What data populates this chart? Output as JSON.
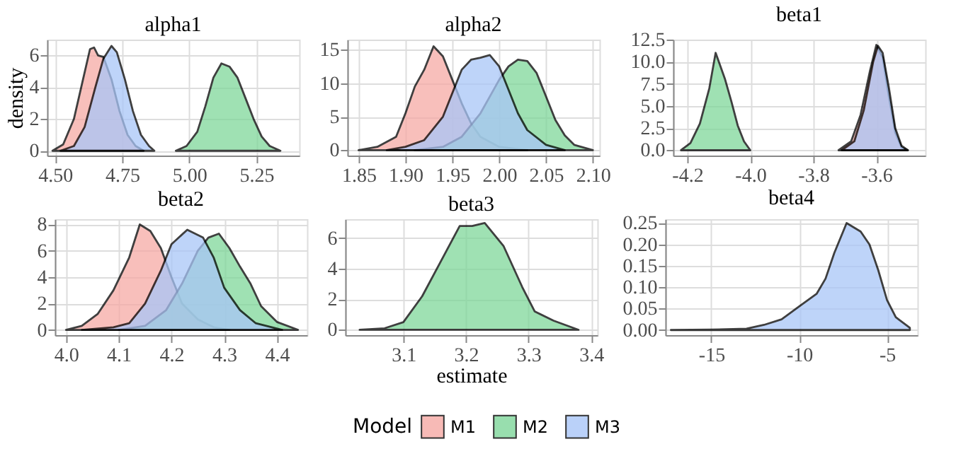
{
  "chart_data": [
    {
      "type": "area",
      "title": "alpha1",
      "ylabel": "density",
      "legend_title": "Model",
      "legend": "bottom",
      "grid": true,
      "xlim": [
        4.47,
        5.41
      ],
      "ylim": [
        -0.3,
        7
      ],
      "xticks": [
        {
          "value": 4.5,
          "label": "4.50"
        },
        {
          "value": 4.75,
          "label": "4.75"
        },
        {
          "value": 5.0,
          "label": "5.00"
        },
        {
          "value": 5.25,
          "label": "5.25"
        }
      ],
      "yticks": [
        0,
        2,
        4,
        6
      ],
      "series": [
        {
          "name": "M1",
          "color": "#f6aaa5",
          "x": [
            4.49,
            4.53,
            4.57,
            4.6,
            4.63,
            4.645,
            4.66,
            4.68,
            4.71,
            4.74,
            4.77,
            4.8,
            4.83
          ],
          "values": [
            0,
            0.4,
            2,
            4.2,
            6.4,
            6.5,
            6.0,
            5.9,
            4.5,
            2.5,
            1.0,
            0.3,
            0
          ]
        },
        {
          "name": "M2",
          "color": "#7fd79a",
          "x": [
            4.95,
            4.99,
            5.03,
            5.06,
            5.09,
            5.12,
            5.15,
            5.18,
            5.21,
            5.24,
            5.27,
            5.3,
            5.34
          ],
          "values": [
            0,
            0.3,
            1.2,
            2.8,
            4.6,
            5.5,
            5.3,
            4.6,
            3.3,
            2.0,
            0.9,
            0.3,
            0
          ]
        },
        {
          "name": "M3",
          "color": "#a9c6f8",
          "x": [
            4.52,
            4.57,
            4.61,
            4.65,
            4.68,
            4.71,
            4.73,
            4.76,
            4.79,
            4.82,
            4.85,
            4.87
          ],
          "values": [
            0,
            0.3,
            1.5,
            4,
            5.8,
            6.6,
            6.2,
            4.5,
            2.5,
            1.0,
            0.3,
            0
          ]
        }
      ]
    },
    {
      "type": "area",
      "title": "alpha2",
      "grid": true,
      "xlim": [
        1.838,
        2.107
      ],
      "ylim": [
        -0.8,
        16.5
      ],
      "xticks": [
        {
          "value": 1.85,
          "label": "1.85"
        },
        {
          "value": 1.9,
          "label": "1.90"
        },
        {
          "value": 1.95,
          "label": "1.95"
        },
        {
          "value": 2.0,
          "label": "2.00"
        },
        {
          "value": 2.05,
          "label": "2.05"
        },
        {
          "value": 2.1,
          "label": "2.10"
        }
      ],
      "yticks": [
        0,
        5,
        10,
        15
      ],
      "series": [
        {
          "color": "#f6aaa5",
          "x": [
            1.85,
            1.87,
            1.89,
            1.9,
            1.91,
            1.92,
            1.93,
            1.94,
            1.95,
            1.96,
            1.97,
            1.98,
            2.0,
            2.03
          ],
          "values": [
            0,
            0.5,
            2,
            5.5,
            9.5,
            12,
            15.5,
            14,
            10.5,
            7,
            4,
            2,
            0.5,
            0
          ]
        },
        {
          "color": "#7fd79a",
          "x": [
            1.91,
            1.94,
            1.96,
            1.98,
            1.99,
            2.0,
            2.01,
            2.02,
            2.03,
            2.04,
            2.05,
            2.06,
            2.07,
            2.08,
            2.1
          ],
          "values": [
            0,
            0.5,
            2,
            5.5,
            8,
            10.5,
            12.5,
            13.5,
            13.3,
            11.5,
            8,
            4.5,
            2.2,
            0.8,
            0
          ]
        },
        {
          "color": "#a9c6f8",
          "x": [
            1.88,
            1.9,
            1.92,
            1.94,
            1.95,
            1.96,
            1.97,
            1.98,
            1.99,
            2.0,
            2.01,
            2.02,
            2.03,
            2.05,
            2.07
          ],
          "values": [
            0,
            0.5,
            1.5,
            5,
            8.5,
            12,
            13.5,
            13.8,
            14.2,
            12.5,
            9,
            5.5,
            3,
            0.8,
            0
          ]
        }
      ]
    },
    {
      "type": "area",
      "title": "beta1",
      "grid": true,
      "xlim": [
        -4.245,
        -3.445
      ],
      "ylim": [
        -0.6,
        12.5
      ],
      "xticks": [
        -4.2,
        {
          "value": -4.0,
          "label": "-4.0"
        },
        -3.8,
        -3.6
      ],
      "yticks": [
        {
          "value": 0,
          "label": "0.0"
        },
        2.5,
        {
          "value": 5,
          "label": "5.0"
        },
        7.5,
        {
          "value": 10,
          "label": "10.0"
        },
        12.5
      ],
      "series": [
        {
          "color": "#f6aaa5",
          "x": [
            -3.72,
            -3.68,
            -3.65,
            -3.62,
            -3.6,
            -3.58,
            -3.56,
            -3.54,
            -3.52,
            -3.5
          ],
          "values": [
            0,
            1,
            4,
            9,
            11.9,
            10.5,
            6,
            2,
            0.3,
            0
          ]
        },
        {
          "color": "#7fd79a",
          "x": [
            -4.22,
            -4.19,
            -4.16,
            -4.13,
            -4.11,
            -4.1,
            -4.08,
            -4.06,
            -4.04,
            -4.02,
            -4.0
          ],
          "values": [
            0,
            0.8,
            3,
            7,
            11,
            10,
            8,
            5.5,
            2.8,
            1,
            0
          ]
        },
        {
          "color": "#a9c6f8",
          "x": [
            -3.71,
            -3.67,
            -3.64,
            -3.61,
            -3.595,
            -3.58,
            -3.56,
            -3.54,
            -3.52,
            -3.5
          ],
          "values": [
            0,
            1,
            4.5,
            10,
            11.8,
            11,
            7,
            2.5,
            0.5,
            0
          ]
        }
      ]
    },
    {
      "type": "area",
      "title": "beta2",
      "grid": true,
      "xlim": [
        3.979,
        4.457
      ],
      "ylim": [
        -0.4,
        8.4
      ],
      "xticks": [
        {
          "value": 4.0,
          "label": "4.0"
        },
        4.1,
        4.2,
        4.3,
        4.4
      ],
      "yticks": [
        0,
        2,
        4,
        6,
        8
      ],
      "series": [
        {
          "color": "#f6aaa5",
          "x": [
            4.0,
            4.03,
            4.06,
            4.09,
            4.12,
            4.14,
            4.16,
            4.18,
            4.2,
            4.22,
            4.25,
            4.28,
            4.31
          ],
          "values": [
            0,
            0.3,
            1.2,
            3,
            5.5,
            8,
            7.5,
            6.2,
            4,
            2,
            0.8,
            0.2,
            0
          ]
        },
        {
          "color": "#7fd79a",
          "x": [
            4.1,
            4.15,
            4.19,
            4.22,
            4.25,
            4.27,
            4.29,
            4.31,
            4.33,
            4.35,
            4.37,
            4.4,
            4.44
          ],
          "values": [
            0,
            0.3,
            1.5,
            3.5,
            6,
            7,
            7.3,
            6.2,
            4.8,
            3.5,
            1.8,
            0.6,
            0
          ]
        },
        {
          "color": "#a9c6f8",
          "x": [
            4.03,
            4.09,
            4.12,
            4.15,
            4.18,
            4.2,
            4.23,
            4.26,
            4.28,
            4.3,
            4.33,
            4.36,
            4.41
          ],
          "values": [
            0,
            0.2,
            0.5,
            2,
            4.5,
            6.5,
            7.6,
            7,
            5.5,
            3.2,
            1.5,
            0.5,
            0
          ]
        }
      ]
    },
    {
      "type": "area",
      "title": "beta3",
      "xlabel": "estimate",
      "grid": true,
      "xlim": [
        3.007,
        3.41
      ],
      "ylim": [
        -0.35,
        7.25
      ],
      "xticks": [
        3.1,
        3.2,
        3.3,
        3.4
      ],
      "yticks": [
        0,
        2,
        4,
        6
      ],
      "series": [
        {
          "color": "#7fd79a",
          "x": [
            3.03,
            3.07,
            3.1,
            3.13,
            3.16,
            3.19,
            3.21,
            3.23,
            3.26,
            3.29,
            3.31,
            3.34,
            3.38
          ],
          "values": [
            0,
            0.1,
            0.5,
            2.2,
            4.5,
            6.8,
            6.8,
            7.0,
            5.5,
            2.8,
            1.2,
            0.6,
            0
          ]
        }
      ]
    },
    {
      "type": "area",
      "title": "beta4",
      "grid": true,
      "xlim": [
        -17.62,
        -3.27
      ],
      "ylim": [
        -0.012,
        0.259
      ],
      "xticks": [
        -15,
        -10,
        -5
      ],
      "yticks": [
        {
          "value": 0,
          "label": "0.00"
        },
        0.05,
        {
          "value": 0.1,
          "label": "0.10"
        },
        0.15,
        {
          "value": 0.2,
          "label": "0.20"
        },
        0.25
      ],
      "series": [
        {
          "color": "#a9c6f8",
          "x": [
            -17.3,
            -15,
            -13,
            -12,
            -11,
            -10,
            -9,
            -8.5,
            -8,
            -7.3,
            -6.5,
            -6,
            -5.5,
            -5,
            -4.5,
            -3.7
          ],
          "values": [
            0,
            0.001,
            0.003,
            0.012,
            0.025,
            0.055,
            0.085,
            0.12,
            0.18,
            0.25,
            0.23,
            0.2,
            0.14,
            0.07,
            0.03,
            0.005
          ]
        }
      ]
    }
  ]
}
